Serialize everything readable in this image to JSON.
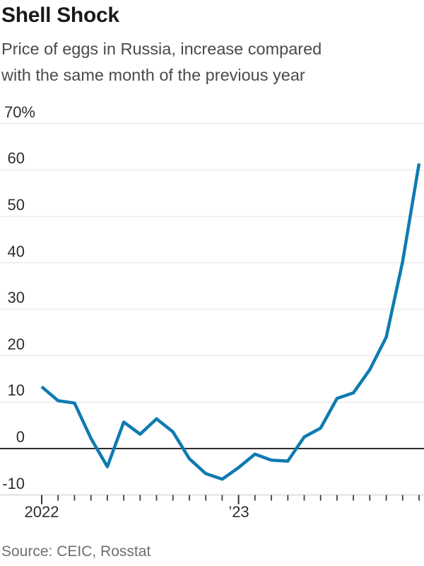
{
  "chart_data": {
    "type": "line",
    "title": "Shell Shock",
    "subtitle_lines": [
      "Price of eggs in Russia, increase compared",
      "with the same month of the previous year"
    ],
    "x": [
      "Jan 2022",
      "Feb 2022",
      "Mar 2022",
      "Apr 2022",
      "May 2022",
      "Jun 2022",
      "Jul 2022",
      "Aug 2022",
      "Sep 2022",
      "Oct 2022",
      "Nov 2022",
      "Dec 2022",
      "Jan 2023",
      "Feb 2023",
      "Mar 2023",
      "Apr 2023",
      "May 2023",
      "Jun 2023",
      "Jul 2023",
      "Aug 2023",
      "Sep 2023",
      "Oct 2023",
      "Nov 2023",
      "Dec 2023"
    ],
    "values": [
      13.3,
      10.3,
      9.8,
      2.2,
      -3.9,
      5.7,
      3.1,
      6.4,
      3.6,
      -2.2,
      -5.4,
      -6.6,
      -4.1,
      -1.2,
      -2.5,
      -2.7,
      2.5,
      4.4,
      10.8,
      12.0,
      17.0,
      24.0,
      40.3,
      61.4
    ],
    "ylabel": "",
    "xlabel": "",
    "ylim": [
      -10,
      70
    ],
    "y_ticks": [
      70,
      60,
      50,
      40,
      30,
      20,
      10,
      0,
      -10
    ],
    "y_tick_labels": [
      "70%",
      "60",
      "50",
      "40",
      "30",
      "20",
      "10",
      "0",
      "-10"
    ],
    "x_axis_labels": [
      {
        "label": "2022",
        "month_index": 0
      },
      {
        "label": "’23",
        "month_index": 12
      }
    ],
    "grid": true,
    "zero_line": true,
    "legend": "none",
    "line_color": "#0f7bb0"
  },
  "source": {
    "text": "Source: CEIC, Rosstat"
  }
}
